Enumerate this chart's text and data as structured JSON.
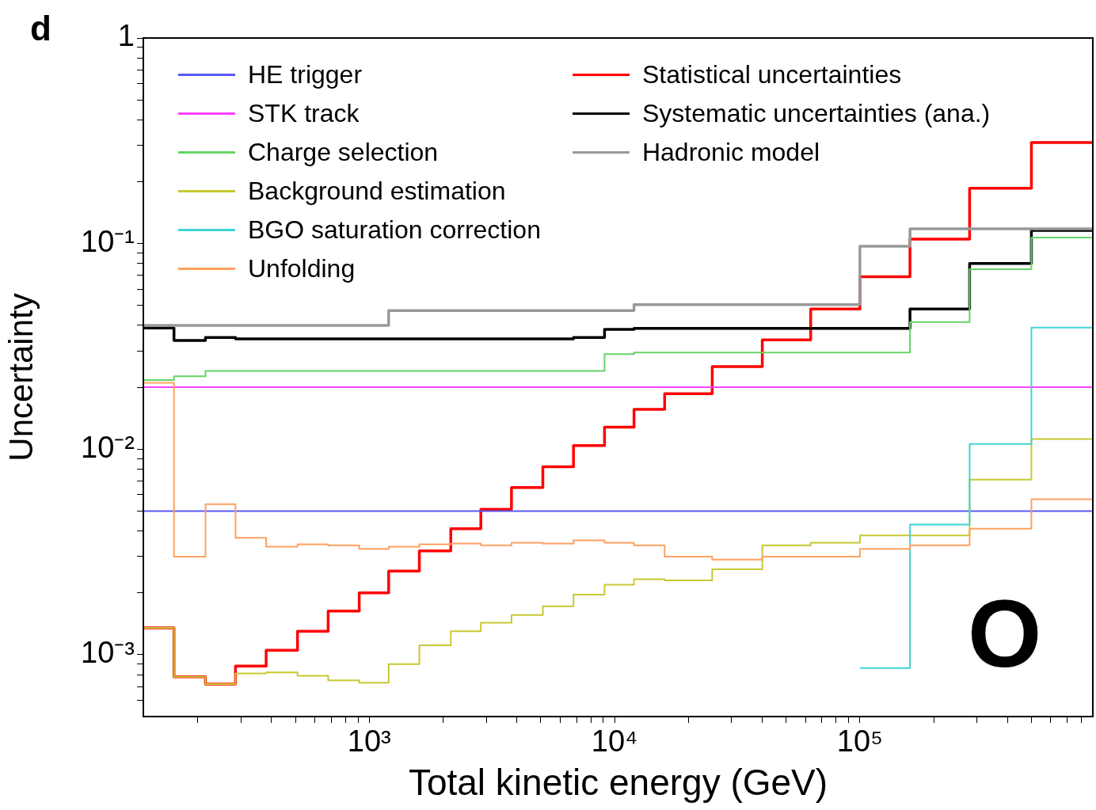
{
  "chart_data": {
    "type": "step",
    "xlabel": "Total kinetic energy (GeV)",
    "ylabel": "Uncertainty",
    "annotations": [
      "d",
      "O"
    ],
    "log": "xy",
    "legend": "top left",
    "xlim": [
      120,
      890000
    ],
    "ylim": [
      0.0005,
      1
    ],
    "xticks": [
      {
        "value": 200,
        "label": null
      },
      {
        "value": 300,
        "label": null
      },
      {
        "value": 400,
        "label": null
      },
      {
        "value": 500,
        "label": null
      },
      {
        "value": 600,
        "label": null
      },
      {
        "value": 700,
        "label": null
      },
      {
        "value": 800,
        "label": null
      },
      {
        "value": 900,
        "label": null
      },
      {
        "value": 1000,
        "label": "10³"
      },
      {
        "value": 2000,
        "label": null
      },
      {
        "value": 3000,
        "label": null
      },
      {
        "value": 4000,
        "label": null
      },
      {
        "value": 5000,
        "label": null
      },
      {
        "value": 6000,
        "label": null
      },
      {
        "value": 7000,
        "label": null
      },
      {
        "value": 8000,
        "label": null
      },
      {
        "value": 9000,
        "label": null
      },
      {
        "value": 10000,
        "label": "10⁴"
      },
      {
        "value": 20000,
        "label": null
      },
      {
        "value": 30000,
        "label": null
      },
      {
        "value": 40000,
        "label": null
      },
      {
        "value": 50000,
        "label": null
      },
      {
        "value": 60000,
        "label": null
      },
      {
        "value": 70000,
        "label": null
      },
      {
        "value": 80000,
        "label": null
      },
      {
        "value": 90000,
        "label": null
      },
      {
        "value": 100000,
        "label": "10⁵"
      },
      {
        "value": 200000,
        "label": null
      },
      {
        "value": 300000,
        "label": null
      },
      {
        "value": 400000,
        "label": null
      },
      {
        "value": 500000,
        "label": null
      },
      {
        "value": 600000,
        "label": null
      },
      {
        "value": 700000,
        "label": null
      },
      {
        "value": 800000,
        "label": null
      }
    ],
    "yticks": [
      {
        "value": 0.0006,
        "label": null
      },
      {
        "value": 0.0007,
        "label": null
      },
      {
        "value": 0.0008,
        "label": null
      },
      {
        "value": 0.0009,
        "label": null
      },
      {
        "value": 0.001,
        "label": "10⁻³"
      },
      {
        "value": 0.002,
        "label": null
      },
      {
        "value": 0.003,
        "label": null
      },
      {
        "value": 0.004,
        "label": null
      },
      {
        "value": 0.005,
        "label": null
      },
      {
        "value": 0.006,
        "label": null
      },
      {
        "value": 0.007,
        "label": null
      },
      {
        "value": 0.008,
        "label": null
      },
      {
        "value": 0.009,
        "label": null
      },
      {
        "value": 0.01,
        "label": "10⁻²"
      },
      {
        "value": 0.02,
        "label": null
      },
      {
        "value": 0.03,
        "label": null
      },
      {
        "value": 0.04,
        "label": null
      },
      {
        "value": 0.05,
        "label": null
      },
      {
        "value": 0.06,
        "label": null
      },
      {
        "value": 0.07,
        "label": null
      },
      {
        "value": 0.08,
        "label": null
      },
      {
        "value": 0.09,
        "label": null
      },
      {
        "value": 0.1,
        "label": "10⁻¹"
      },
      {
        "value": 0.2,
        "label": null
      },
      {
        "value": 0.3,
        "label": null
      },
      {
        "value": 0.4,
        "label": null
      },
      {
        "value": 0.5,
        "label": null
      },
      {
        "value": 0.6,
        "label": null
      },
      {
        "value": 0.7,
        "label": null
      },
      {
        "value": 0.8,
        "label": null
      },
      {
        "value": 0.9,
        "label": null
      },
      1
    ],
    "x": [
      120,
      160,
      215,
      285,
      380,
      510,
      680,
      910,
      1200,
      1600,
      2150,
      2850,
      3800,
      5100,
      6800,
      9100,
      12000,
      16000,
      25000,
      40000,
      63000,
      100000,
      160000,
      280000,
      500000,
      890000
    ],
    "series": [
      {
        "name": "HE trigger",
        "color": "#5a5af5",
        "values": [
          0.005,
          0.005,
          0.005,
          0.005,
          0.005,
          0.005,
          0.005,
          0.005,
          0.005,
          0.005,
          0.005,
          0.005,
          0.005,
          0.005,
          0.005,
          0.005,
          0.005,
          0.005,
          0.005,
          0.005,
          0.005,
          0.005,
          0.005,
          0.005,
          0.005,
          0.005
        ]
      },
      {
        "name": "STK track",
        "color": "#ff40ff",
        "values": [
          0.02,
          0.02,
          0.02,
          0.02,
          0.02,
          0.02,
          0.02,
          0.02,
          0.02,
          0.02,
          0.02,
          0.02,
          0.02,
          0.02,
          0.02,
          0.02,
          0.02,
          0.02,
          0.02,
          0.02,
          0.02,
          0.02,
          0.02,
          0.02,
          0.02,
          0.02
        ]
      },
      {
        "name": "Charge selection",
        "color": "#66d466",
        "values": [
          0.0217,
          0.0226,
          0.024,
          0.024,
          0.024,
          0.024,
          0.024,
          0.024,
          0.024,
          0.024,
          0.024,
          0.024,
          0.024,
          0.024,
          0.024,
          0.029,
          0.0295,
          0.0295,
          0.0295,
          0.0295,
          0.0295,
          0.0295,
          0.0415,
          0.075,
          0.107,
          0.107
        ]
      },
      {
        "name": "Background estimation",
        "color": "#c8c832",
        "values": [
          0.00135,
          0.00078,
          0.00072,
          0.00081,
          0.00082,
          0.00079,
          0.00075,
          0.00073,
          0.0009,
          0.00111,
          0.0013,
          0.00143,
          0.00156,
          0.00172,
          0.00196,
          0.00219,
          0.00233,
          0.0023,
          0.0026,
          0.0034,
          0.0035,
          0.0038,
          0.0038,
          0.0071,
          0.0112,
          0.0112
        ]
      },
      {
        "name": "BGO saturation correction",
        "color": "#40d4d4",
        "values": [
          null,
          null,
          null,
          null,
          null,
          null,
          null,
          null,
          null,
          null,
          null,
          null,
          null,
          null,
          null,
          null,
          null,
          null,
          null,
          null,
          null,
          0.00086,
          0.0043,
          0.0106,
          0.039,
          0.039
        ]
      },
      {
        "name": "Unfolding",
        "color": "#ffa060",
        "values": [
          0.021,
          0.003,
          0.0054,
          0.0037,
          0.00335,
          0.00344,
          0.0034,
          0.00327,
          0.00335,
          0.00344,
          0.00347,
          0.0034,
          0.0035,
          0.00347,
          0.0036,
          0.0035,
          0.0034,
          0.003,
          0.0029,
          0.003,
          0.003,
          0.00327,
          0.0034,
          0.0041,
          0.0057,
          0.0057
        ]
      },
      {
        "name": "Statistical uncertainties",
        "color": "#ff0000",
        "values": [
          0.00135,
          0.00078,
          0.00072,
          0.00088,
          0.00105,
          0.0013,
          0.00163,
          0.002,
          0.00255,
          0.0032,
          0.0041,
          0.0051,
          0.0065,
          0.0082,
          0.0104,
          0.0128,
          0.0156,
          0.0186,
          0.0252,
          0.034,
          0.048,
          0.069,
          0.105,
          0.186,
          0.31,
          0.31
        ]
      },
      {
        "name": "Systematic uncertainties (ana.)",
        "color": "#000000",
        "values": [
          0.0388,
          0.0338,
          0.0349,
          0.0344,
          0.0344,
          0.0344,
          0.0344,
          0.0344,
          0.0344,
          0.0344,
          0.0344,
          0.0344,
          0.0344,
          0.0344,
          0.0349,
          0.0382,
          0.0387,
          0.0387,
          0.0387,
          0.0387,
          0.0387,
          0.0387,
          0.048,
          0.08,
          0.116,
          0.116
        ]
      },
      {
        "name": "Hadronic model",
        "color": "#999999",
        "values": [
          0.04,
          0.04,
          0.04,
          0.04,
          0.04,
          0.04,
          0.04,
          0.04,
          0.0472,
          0.0472,
          0.0472,
          0.0472,
          0.0472,
          0.0472,
          0.0472,
          0.0472,
          0.0504,
          0.0504,
          0.0504,
          0.0504,
          0.0504,
          0.097,
          0.118,
          0.118,
          0.118,
          0.118
        ]
      }
    ]
  }
}
